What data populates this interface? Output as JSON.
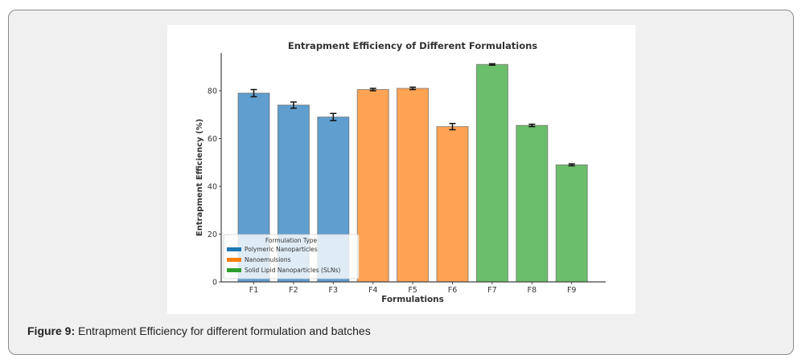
{
  "caption": {
    "label": "Figure 9:",
    "text": " Entrapment Efficiency for different formulation and batches"
  },
  "chart_data": {
    "type": "bar",
    "title": "Entrapment Efficiency of Different Formulations",
    "xlabel": "Formulations",
    "ylabel": "Entrapment Efficiency (%)",
    "ylim": [
      0,
      95
    ],
    "yticks": [
      0,
      20,
      40,
      60,
      80
    ],
    "grid": false,
    "categories": [
      "F1",
      "F2",
      "F3",
      "F4",
      "F5",
      "F6",
      "F7",
      "F8",
      "F9"
    ],
    "values": [
      79,
      74,
      69,
      80.5,
      81,
      65,
      91,
      65.5,
      49
    ],
    "errors": [
      1.5,
      1.3,
      1.5,
      0.5,
      0.5,
      1.3,
      0.3,
      0.5,
      0.4
    ],
    "groups": [
      "Polymeric Nanoparticles",
      "Polymeric Nanoparticles",
      "Polymeric Nanoparticles",
      "Nanoemulsions",
      "Nanoemulsions",
      "Nanoemulsions",
      "Solid Lipid Nanoparticles (SLNs)",
      "Solid Lipid Nanoparticles (SLNs)",
      "Solid Lipid Nanoparticles (SLNs)"
    ],
    "bar_colors": [
      "#5f9ecf",
      "#5f9ecf",
      "#5f9ecf",
      "#fea354",
      "#fea354",
      "#fea354",
      "#6bbe6b",
      "#6bbe6b",
      "#6bbe6b"
    ],
    "legend": {
      "title": "Formulation Type",
      "placement": "lower-left",
      "entries": [
        {
          "label": "Polymeric Nanoparticles",
          "color": "#1f77b4"
        },
        {
          "label": "Nanoemulsions",
          "color": "#ff7f0e"
        },
        {
          "label": "Solid Lipid Nanoparticles (SLNs)",
          "color": "#2ca02c"
        }
      ]
    }
  }
}
